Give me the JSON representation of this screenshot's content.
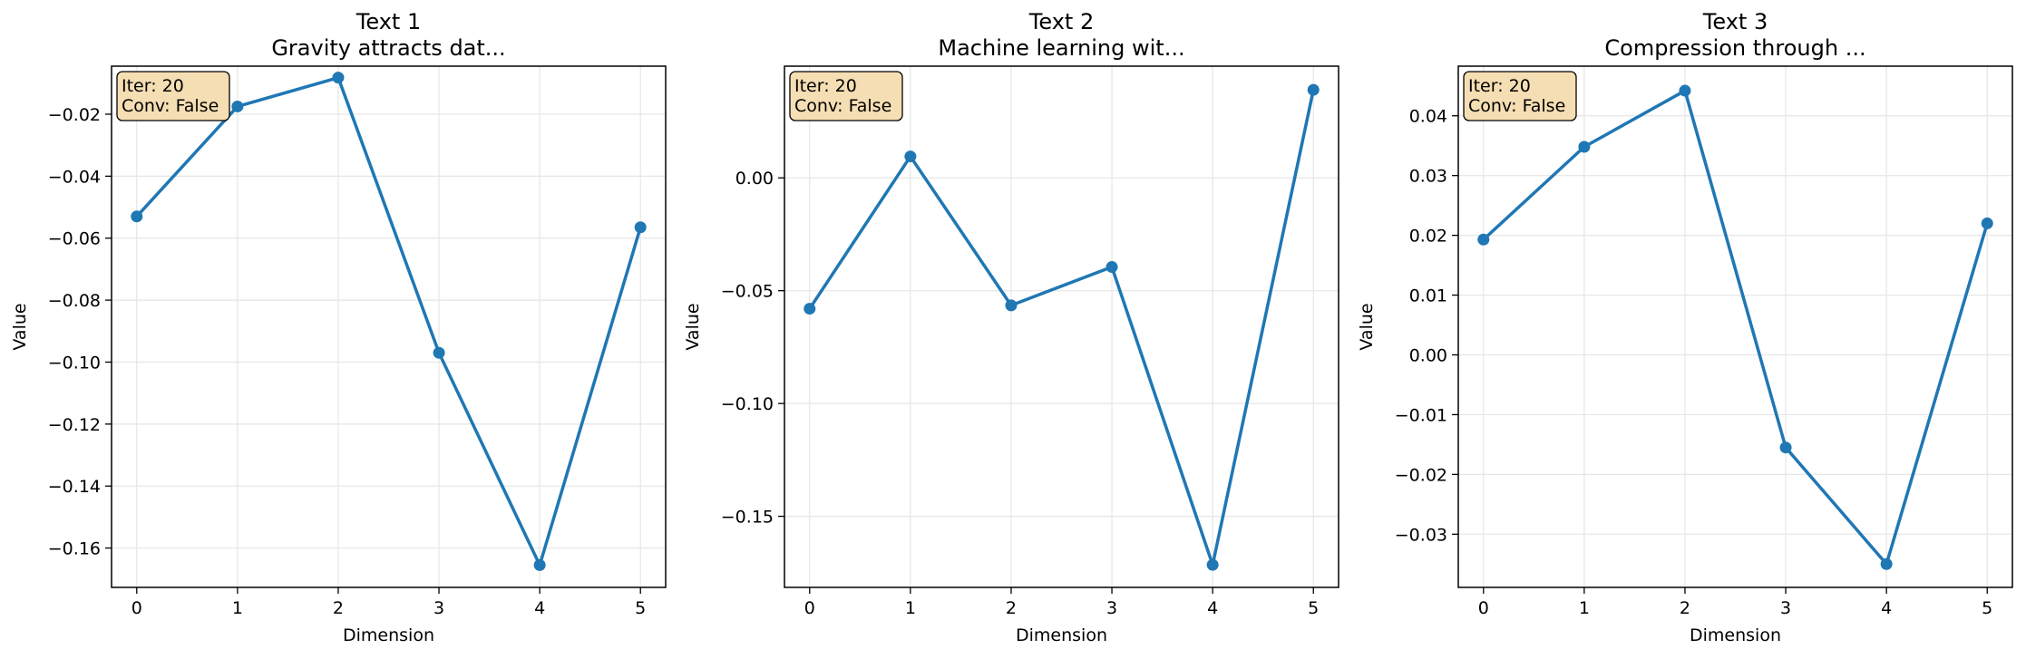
{
  "colors": {
    "line": "#1f77b4",
    "grid": "#e6e6e6",
    "annotation_fill": "#f5deb3",
    "annotation_stroke": "#000000"
  },
  "chart_data": [
    {
      "type": "line",
      "title": "Text 1",
      "subtitle": "Gravity attracts dat...",
      "xlabel": "Dimension",
      "ylabel": "Value",
      "grid": true,
      "x": [
        0,
        1,
        2,
        3,
        4,
        5
      ],
      "y_ticks": [
        -0.16,
        -0.14,
        -0.12,
        -0.1,
        -0.08,
        -0.06,
        -0.04,
        -0.02
      ],
      "y_tick_labels": [
        "−0.16",
        "−0.14",
        "−0.12",
        "−0.10",
        "−0.08",
        "−0.06",
        "−0.04",
        "−0.02"
      ],
      "ylim": [
        -0.1727,
        -0.0045
      ],
      "series": [
        {
          "values": [
            -0.053,
            -0.0175,
            -0.0082,
            -0.097,
            -0.1655,
            -0.0565
          ]
        }
      ],
      "annotation": {
        "line1": "Iter: 20",
        "line2": "Conv: False"
      }
    },
    {
      "type": "line",
      "title": "Text 2",
      "subtitle": "Machine learning wit...",
      "xlabel": "Dimension",
      "ylabel": "Value",
      "grid": true,
      "x": [
        0,
        1,
        2,
        3,
        4,
        5
      ],
      "y_ticks": [
        -0.15,
        -0.1,
        -0.05,
        0.0
      ],
      "y_tick_labels": [
        "−0.15",
        "−0.10",
        "−0.05",
        "0.00"
      ],
      "ylim": [
        -0.1815,
        0.0495
      ],
      "series": [
        {
          "values": [
            -0.058,
            0.0095,
            -0.0565,
            -0.0395,
            -0.1715,
            0.039
          ]
        }
      ],
      "annotation": {
        "line1": "Iter: 20",
        "line2": "Conv: False"
      }
    },
    {
      "type": "line",
      "title": "Text 3",
      "subtitle": "Compression through ...",
      "xlabel": "Dimension",
      "ylabel": "Value",
      "grid": true,
      "x": [
        0,
        1,
        2,
        3,
        4,
        5
      ],
      "y_ticks": [
        -0.03,
        -0.02,
        -0.01,
        0.0,
        0.01,
        0.02,
        0.03,
        0.04
      ],
      "y_tick_labels": [
        "−0.03",
        "−0.02",
        "−0.01",
        "0.00",
        "0.01",
        "0.02",
        "0.03",
        "0.04"
      ],
      "ylim": [
        -0.0389,
        0.0483
      ],
      "series": [
        {
          "values": [
            0.0193,
            0.0348,
            0.0442,
            -0.0155,
            -0.035,
            0.022
          ]
        }
      ],
      "annotation": {
        "line1": "Iter: 20",
        "line2": "Conv: False"
      }
    }
  ]
}
